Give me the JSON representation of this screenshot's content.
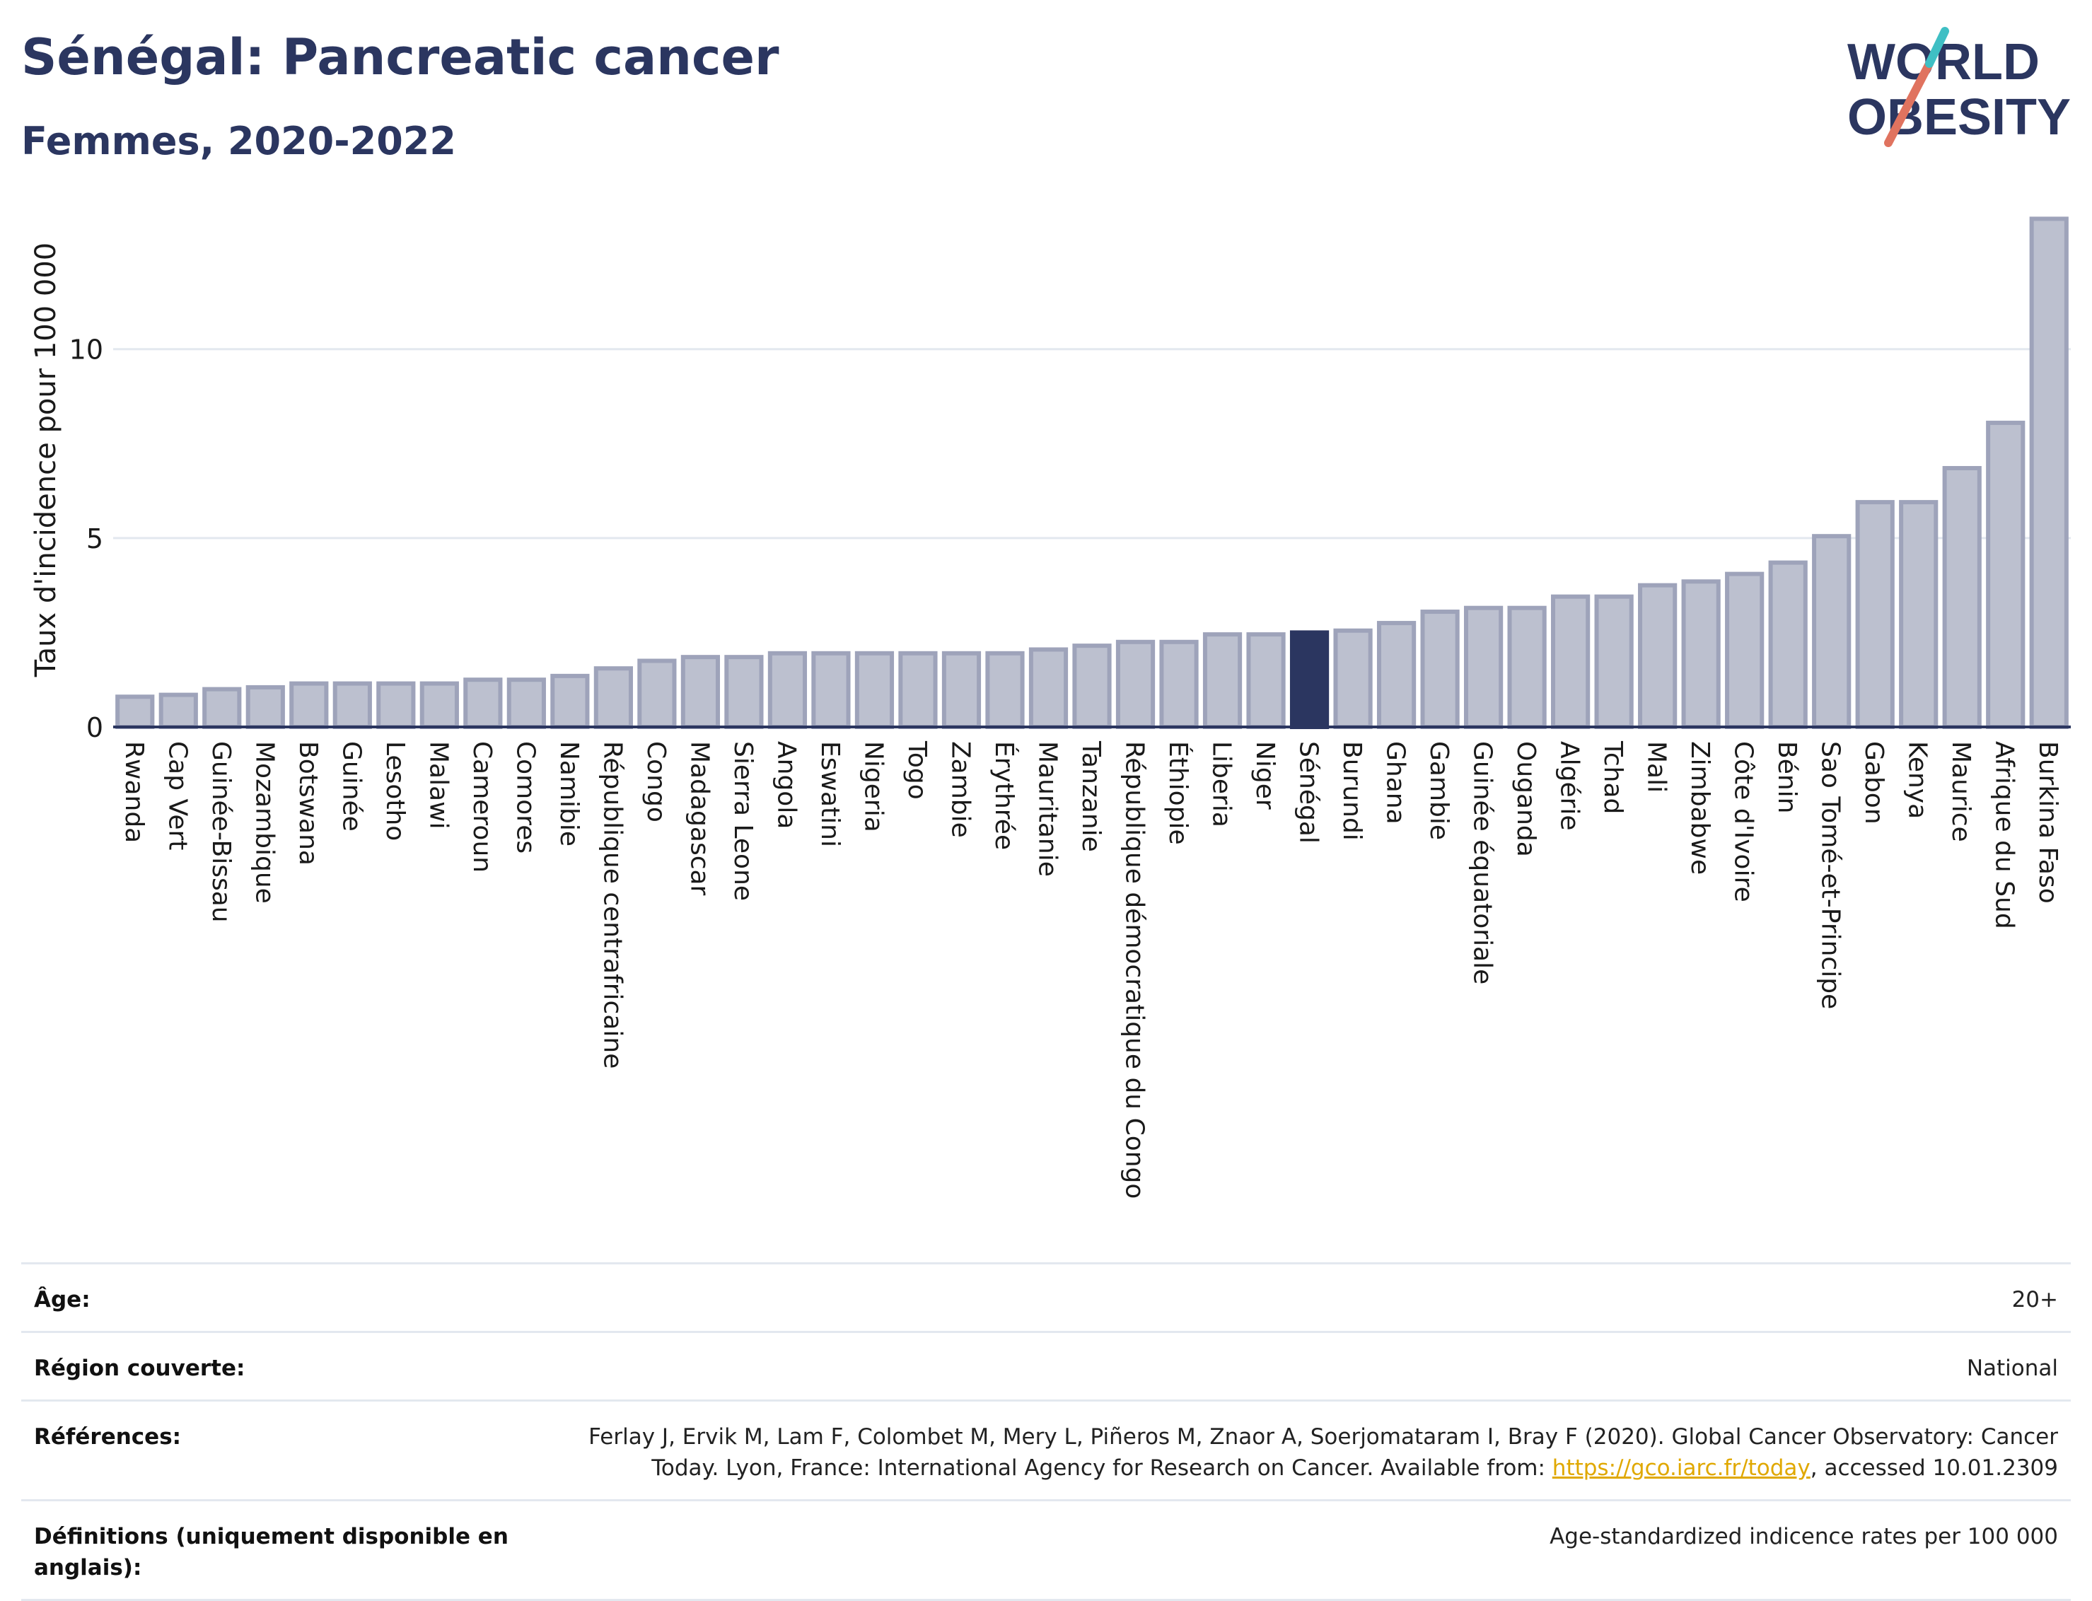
{
  "header": {
    "title": "Sénégal: Pancreatic cancer",
    "subtitle": "Femmes, 2020-2022"
  },
  "logo": {
    "line1": "WORLD",
    "line2": "OBESITY",
    "colors": {
      "text": "#2b3660",
      "slash_red": "#e0735f",
      "slash_teal": "#3fbfc4"
    }
  },
  "colors": {
    "bar_fill": "#bcc0cf",
    "bar_stroke": "#9ea3ba",
    "highlight": "#2b3660",
    "grid": "#e3e8ef",
    "axis": "#2b3660"
  },
  "chart_data": {
    "type": "bar",
    "title": "Sénégal: Pancreatic cancer",
    "subtitle": "Femmes, 2020-2022",
    "ylabel": "Taux d'incidence pour 100 000",
    "xlabel": "",
    "ylim": [
      0,
      14
    ],
    "yticks": [
      0,
      5,
      10
    ],
    "highlight": "Sénégal",
    "grid": true,
    "categories": [
      "Rwanda",
      "Cap Vert",
      "Guinée-Bissau",
      "Mozambique",
      "Botswana",
      "Guinée",
      "Lesotho",
      "Malawi",
      "Cameroun",
      "Comores",
      "Namibie",
      "République centrafricaine",
      "Congo",
      "Madagascar",
      "Sierra Leone",
      "Angola",
      "Eswatini",
      "Nigeria",
      "Togo",
      "Zambie",
      "Érythrée",
      "Mauritanie",
      "Tanzanie",
      "République démocratique du Congo",
      "Éthiopie",
      "Liberia",
      "Niger",
      "Sénégal",
      "Burundi",
      "Ghana",
      "Gambie",
      "Guinée équatoriale",
      "Ouganda",
      "Algérie",
      "Tchad",
      "Mali",
      "Zimbabwe",
      "Côte d'Ivoire",
      "Bénin",
      "Sao Tomé-et-Principe",
      "Gabon",
      "Kenya",
      "Maurice",
      "Afrique du Sud",
      "Burkina Faso"
    ],
    "values": [
      0.8,
      0.85,
      1.0,
      1.05,
      1.15,
      1.15,
      1.15,
      1.15,
      1.25,
      1.25,
      1.35,
      1.55,
      1.75,
      1.85,
      1.85,
      1.95,
      1.95,
      1.95,
      1.95,
      1.95,
      1.95,
      2.05,
      2.15,
      2.25,
      2.25,
      2.45,
      2.45,
      2.5,
      2.55,
      2.75,
      3.05,
      3.15,
      3.15,
      3.45,
      3.45,
      3.75,
      3.85,
      4.05,
      4.35,
      5.05,
      5.95,
      5.95,
      6.85,
      8.05,
      13.45
    ]
  },
  "info": {
    "age_label": "Âge:",
    "age_value": "20+",
    "region_label": "Région couverte:",
    "region_value": "National",
    "references_label": "Références:",
    "references_text_1": "Ferlay J, Ervik M, Lam F, Colombet M, Mery L, Piñeros M, Znaor A, Soerjomataram I, Bray F (2020). Global Cancer Observatory: Cancer Today. Lyon, France: International Agency for Research on Cancer. Available from: ",
    "references_link": "https://gco.iarc.fr/today",
    "references_text_2": ", accessed 10.01.2309",
    "definitions_label": "Définitions (uniquement disponible en anglais):",
    "definitions_value": "Age-standardized indicence rates per 100 000"
  }
}
